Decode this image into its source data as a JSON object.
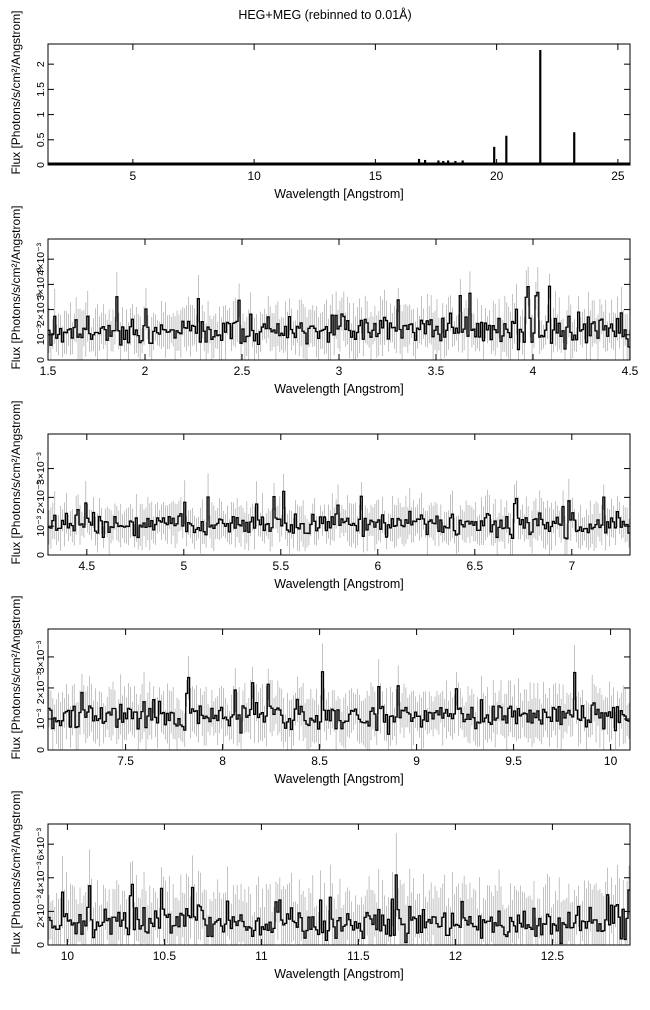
{
  "title": "HEG+MEG (rebinned to 0.01Å)",
  "chart_data": [
    {
      "type": "line",
      "xlabel": "Wavelength [Angstrom]",
      "ylabel": "Flux [Photons/s/cm²/Angstrom]",
      "xlim": [
        1.5,
        25.5
      ],
      "ylim": [
        0,
        2.4
      ],
      "xticks": [
        5,
        10,
        15,
        20,
        25
      ],
      "yticks": [
        0,
        0.5,
        1,
        1.5,
        2
      ],
      "ytick_labels": [
        "0",
        "0.5",
        "1",
        "1.5",
        "2"
      ],
      "baseline": 0.03,
      "lines": [
        {
          "x": 16.8,
          "y": 0.12
        },
        {
          "x": 17.05,
          "y": 0.1
        },
        {
          "x": 17.6,
          "y": 0.09
        },
        {
          "x": 17.8,
          "y": 0.08
        },
        {
          "x": 18.0,
          "y": 0.09
        },
        {
          "x": 18.3,
          "y": 0.08
        },
        {
          "x": 18.6,
          "y": 0.09
        },
        {
          "x": 19.9,
          "y": 0.36
        },
        {
          "x": 20.4,
          "y": 0.58
        },
        {
          "x": 21.8,
          "y": 2.28
        },
        {
          "x": 23.2,
          "y": 0.65
        }
      ]
    },
    {
      "type": "line",
      "xlabel": "Wavelength [Angstrom]",
      "ylabel": "Flux [Photons/s/cm²/Angstrom]",
      "xlim": [
        1.5,
        4.5
      ],
      "ylim": [
        0,
        0.0048
      ],
      "xticks": [
        1.5,
        2,
        2.5,
        3,
        3.5,
        4,
        4.5
      ],
      "yticks": [
        0,
        0.001,
        0.002,
        0.003,
        0.004
      ],
      "ytick_labels": [
        "0",
        "10⁻³",
        "2×10⁻³",
        "3×10⁻³",
        "4×10⁻³"
      ],
      "level": 0.0012,
      "noise": 0.00055,
      "err": 0.0008
    },
    {
      "type": "line",
      "xlabel": "Wavelength [Angstrom]",
      "ylabel": "Flux [Photons/s/cm²/Angstrom]",
      "xlim": [
        4.3,
        7.3
      ],
      "ylim": [
        0,
        0.0042
      ],
      "xticks": [
        4.5,
        5,
        5.5,
        6,
        6.5,
        7
      ],
      "yticks": [
        0,
        0.001,
        0.002,
        0.003
      ],
      "ytick_labels": [
        "0",
        "10⁻³",
        "2×10⁻³",
        "3×10⁻³"
      ],
      "level": 0.00105,
      "noise": 0.00035,
      "err": 0.0006
    },
    {
      "type": "line",
      "xlabel": "Wavelength [Angstrom]",
      "ylabel": "Flux [Photons/s/cm²/Angstrom]",
      "xlim": [
        7.1,
        10.1
      ],
      "ylim": [
        0,
        0.0039
      ],
      "xticks": [
        7.5,
        8,
        8.5,
        9,
        9.5,
        10
      ],
      "yticks": [
        0,
        0.001,
        0.002,
        0.003
      ],
      "ytick_labels": [
        "0",
        "10⁻³",
        "2×10⁻³",
        "3×10⁻³"
      ],
      "level": 0.0011,
      "noise": 0.0004,
      "err": 0.0007
    },
    {
      "type": "line",
      "xlabel": "Wavelength [Angstrom]",
      "ylabel": "Flux [Photons/s/cm²/Angstrom]",
      "xlim": [
        9.9,
        12.9
      ],
      "ylim": [
        0,
        0.0072
      ],
      "xticks": [
        10,
        10.5,
        11,
        11.5,
        12,
        12.5
      ],
      "yticks": [
        0,
        0.002,
        0.004,
        0.006
      ],
      "ytick_labels": [
        "0",
        "2×10⁻³",
        "4×10⁻³",
        "6×10⁻³"
      ],
      "level": 0.0013,
      "noise": 0.0009,
      "err": 0.0018
    }
  ]
}
